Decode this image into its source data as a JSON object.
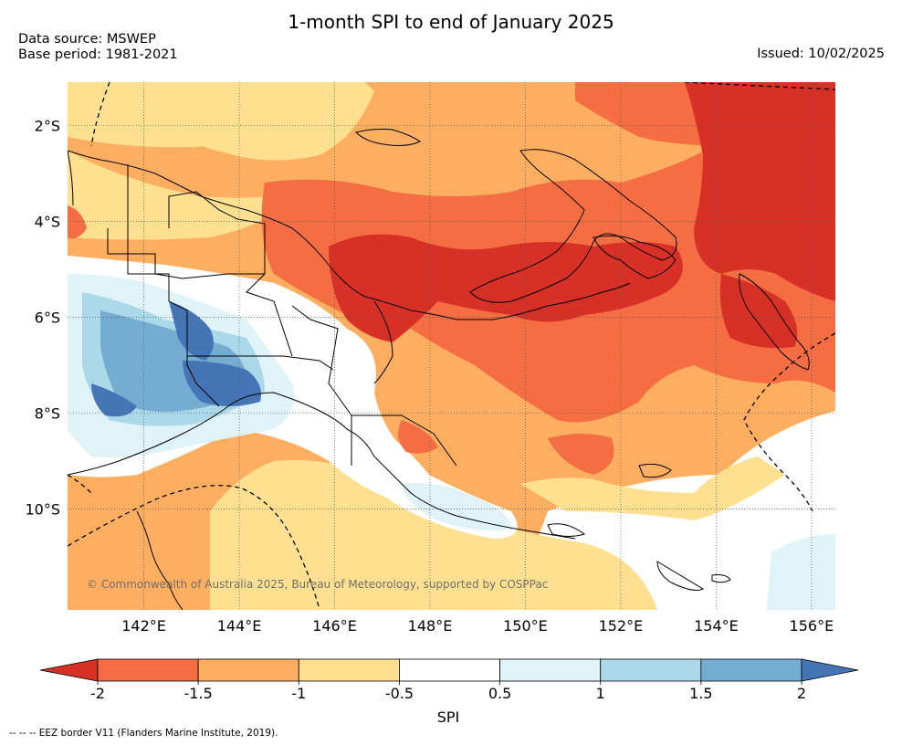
{
  "header": {
    "title": "1-month SPI to end of January 2025",
    "data_source": "Data source: MSWEP",
    "base_period": "Base period: 1981-2021",
    "issued": "Issued: 10/02/2025"
  },
  "map": {
    "lon_range": [
      140.4,
      156.5
    ],
    "lat_range": [
      -12.1,
      -1.1
    ],
    "lat_ticks": [
      {
        "value": -2,
        "label": "2°S"
      },
      {
        "value": -4,
        "label": "4°S"
      },
      {
        "value": -6,
        "label": "6°S"
      },
      {
        "value": -8,
        "label": "8°S"
      },
      {
        "value": -10,
        "label": "10°S"
      }
    ],
    "lon_ticks": [
      {
        "value": 142,
        "label": "142°E"
      },
      {
        "value": 144,
        "label": "144°E"
      },
      {
        "value": 146,
        "label": "146°E"
      },
      {
        "value": 148,
        "label": "148°E"
      },
      {
        "value": 150,
        "label": "150°E"
      },
      {
        "value": 152,
        "label": "152°E"
      },
      {
        "value": 154,
        "label": "154°E"
      },
      {
        "value": 156,
        "label": "156°E"
      }
    ],
    "copyright": "© Commonwealth of Australia 2025, Bureau of Meteorology, supported by COSPPac"
  },
  "colorbar": {
    "title": "SPI",
    "ticks": [
      "-2",
      "-1.5",
      "-1",
      "-0.5",
      "0.5",
      "1",
      "1.5",
      "2"
    ],
    "colors": [
      "#d73027",
      "#f46d43",
      "#fdae61",
      "#fee090",
      "#ffffff",
      "#e0f3f8",
      "#abd9e9",
      "#74add1",
      "#4575b4"
    ]
  },
  "footnote": "-- -- -- EEZ border V11 (Flanders Marine Institute, 2019)."
}
